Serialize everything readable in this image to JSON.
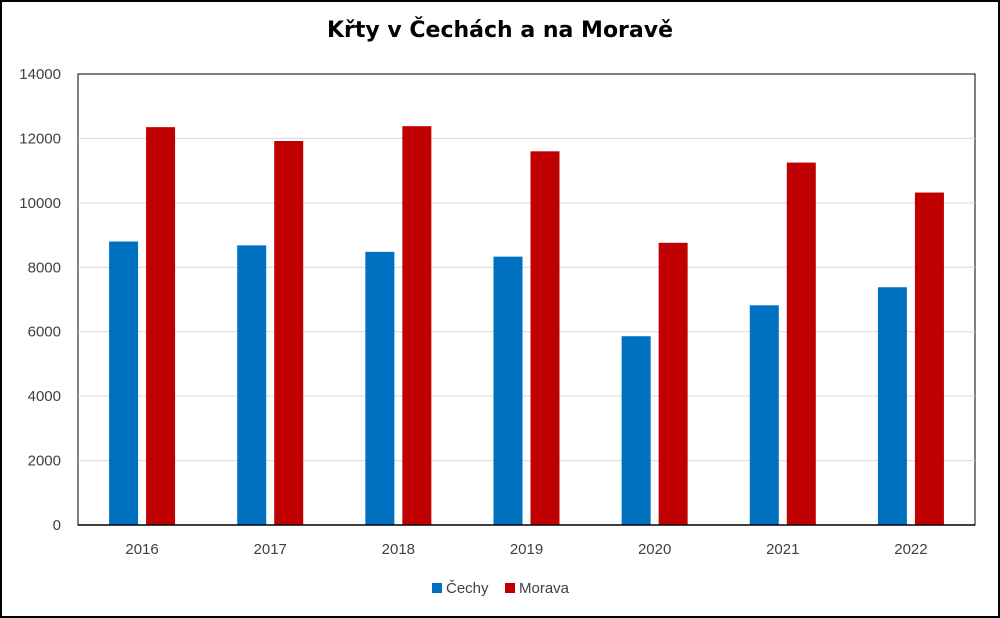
{
  "chart_data": {
    "type": "bar",
    "title": "Křty v Čechách a na Moravě",
    "categories": [
      "2016",
      "2017",
      "2018",
      "2019",
      "2020",
      "2021",
      "2022"
    ],
    "series": [
      {
        "name": "Čechy",
        "color": "#0070c0",
        "values": [
          8800,
          8680,
          8480,
          8330,
          5860,
          6820,
          7380
        ]
      },
      {
        "name": "Morava",
        "color": "#c00000",
        "values": [
          12350,
          11920,
          12380,
          11600,
          8760,
          11250,
          10320
        ]
      }
    ],
    "ylim": [
      0,
      14000
    ],
    "yticks": [
      0,
      2000,
      4000,
      6000,
      8000,
      10000,
      12000,
      14000
    ],
    "grid": true,
    "legend_position": "bottom"
  }
}
